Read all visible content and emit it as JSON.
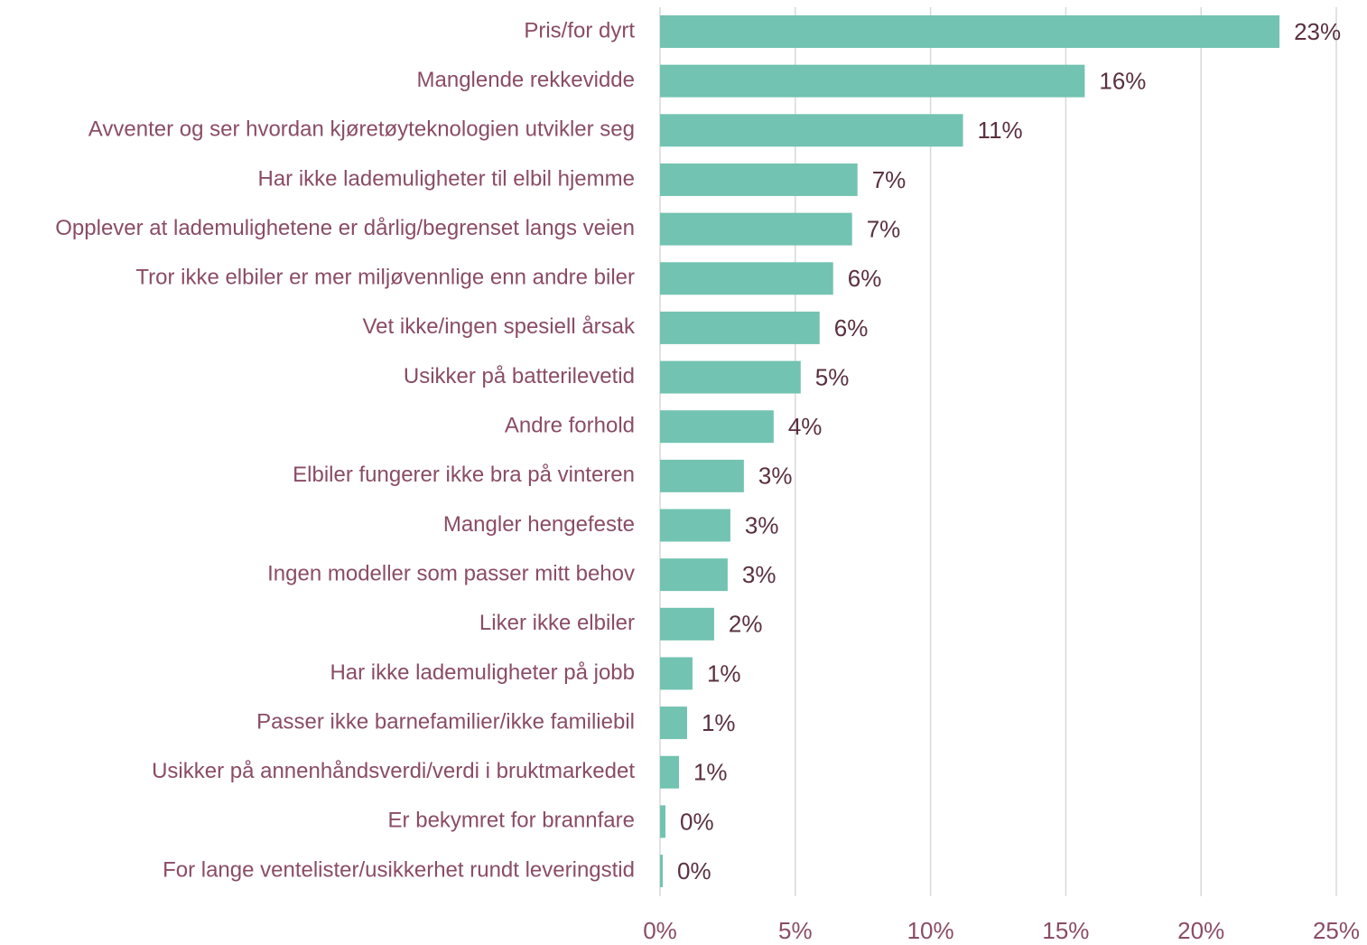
{
  "chart_data": {
    "type": "bar",
    "orientation": "horizontal",
    "categories": [
      "Pris/for dyrt",
      "Manglende rekkevidde",
      "Avventer og ser hvordan kjøretøyteknologien utvikler seg",
      "Har ikke lademuligheter til elbil hjemme",
      "Opplever at lademulighetene er dårlig/begrenset langs veien",
      "Tror ikke elbiler er mer miljøvennlige enn andre biler",
      "Vet ikke/ingen spesiell årsak",
      "Usikker på batterilevetid",
      "Andre forhold",
      "Elbiler fungerer ikke bra på vinteren",
      "Mangler hengefeste",
      "Ingen modeller som passer mitt behov",
      "Liker ikke elbiler",
      "Har ikke lademuligheter på jobb",
      "Passer ikke barnefamilier/ikke familiebil",
      "Usikker på annenhåndsverdi/verdi i bruktmarkedet",
      "Er bekymret for brannfare",
      "For lange ventelister/usikkerhet rundt leveringstid"
    ],
    "values": [
      22.9,
      15.7,
      11.2,
      7.3,
      7.1,
      6.4,
      5.9,
      5.2,
      4.2,
      3.1,
      2.6,
      2.5,
      2.0,
      1.2,
      1.0,
      0.7,
      0.2,
      0.1
    ],
    "value_labels": [
      "23%",
      "16%",
      "11%",
      "7%",
      "7%",
      "6%",
      "6%",
      "5%",
      "4%",
      "3%",
      "3%",
      "3%",
      "2%",
      "1%",
      "1%",
      "1%",
      "0%",
      "0%"
    ],
    "color": "#72c3b1",
    "xlim": [
      0,
      25
    ],
    "xticks": [
      {
        "value": 0,
        "label": "0%"
      },
      {
        "value": 5,
        "label": "5%"
      },
      {
        "value": 10,
        "label": "10%"
      },
      {
        "value": 15,
        "label": "15%"
      },
      {
        "value": 20,
        "label": "20%"
      },
      {
        "value": 25,
        "label": "25%"
      }
    ],
    "grid": true
  }
}
